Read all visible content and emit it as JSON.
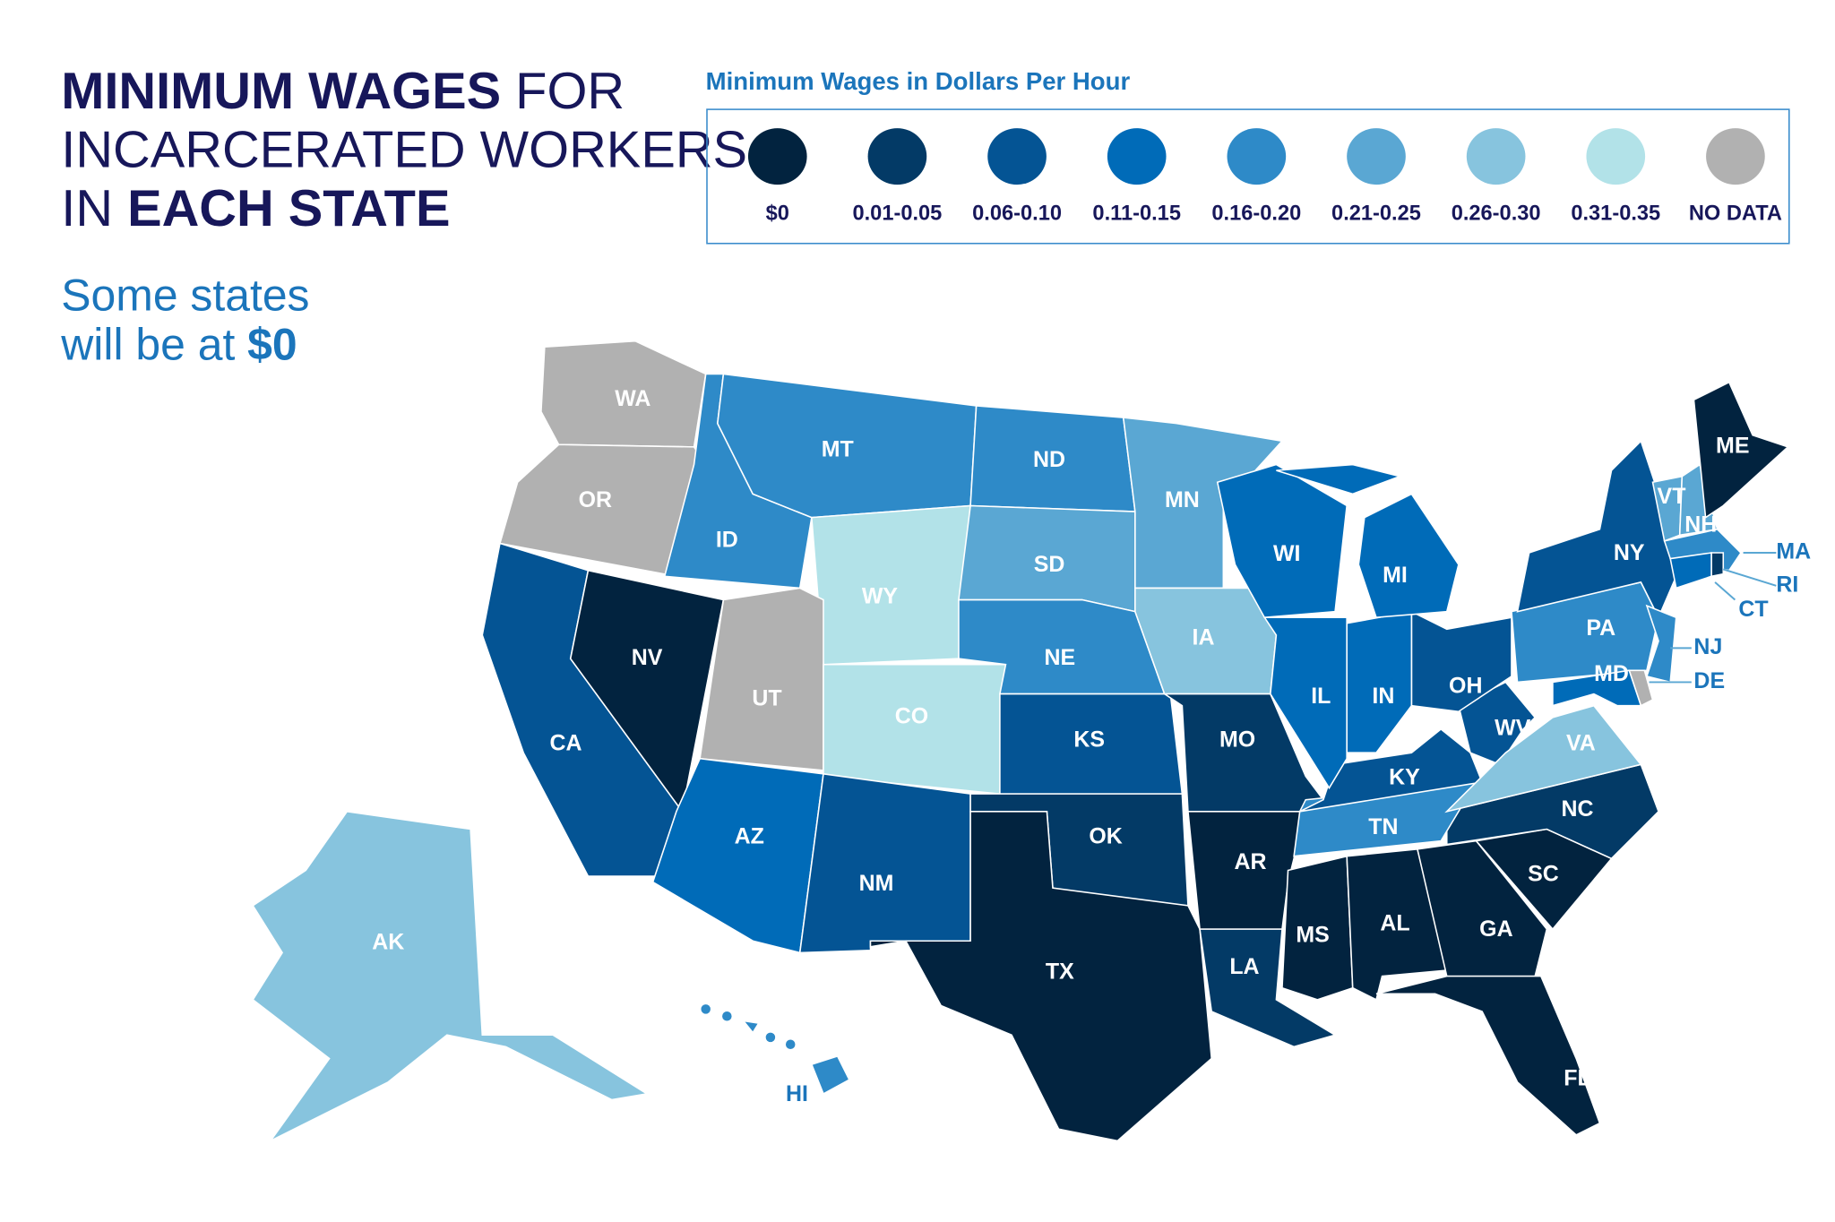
{
  "title": {
    "line1_bold": "MINIMUM WAGES",
    "line1_rest": " FOR",
    "line2": "INCARCERATED WORKERS",
    "line3_pre": "IN ",
    "line3_bold": "EACH STATE"
  },
  "subtitle": {
    "line1": "Some states",
    "line2_pre": "will be at ",
    "line2_bold": "$0"
  },
  "legend": {
    "title": "Minimum Wages in Dollars Per Hour",
    "bins": [
      {
        "key": "b0",
        "label": "$0",
        "color": "#02233f"
      },
      {
        "key": "b1",
        "label": "0.01-0.05",
        "color": "#033a66"
      },
      {
        "key": "b2",
        "label": "0.06-0.10",
        "color": "#045494"
      },
      {
        "key": "b3",
        "label": "0.11-0.15",
        "color": "#006bb8"
      },
      {
        "key": "b4",
        "label": "0.16-0.20",
        "color": "#2e8ac8"
      },
      {
        "key": "b5",
        "label": "0.21-0.25",
        "color": "#5aa7d3"
      },
      {
        "key": "b6",
        "label": "0.26-0.30",
        "color": "#87c4de"
      },
      {
        "key": "b7",
        "label": "0.31-0.35",
        "color": "#b2e2e8"
      },
      {
        "key": "nd",
        "label": "NO DATA",
        "color": "#b1b1b1"
      }
    ]
  },
  "states": [
    {
      "abbr": "WA",
      "bin": "nd"
    },
    {
      "abbr": "OR",
      "bin": "nd"
    },
    {
      "abbr": "CA",
      "bin": "b2"
    },
    {
      "abbr": "NV",
      "bin": "b0"
    },
    {
      "abbr": "ID",
      "bin": "b4"
    },
    {
      "abbr": "MT",
      "bin": "b4"
    },
    {
      "abbr": "WY",
      "bin": "b7"
    },
    {
      "abbr": "UT",
      "bin": "nd"
    },
    {
      "abbr": "CO",
      "bin": "b7"
    },
    {
      "abbr": "AZ",
      "bin": "b3"
    },
    {
      "abbr": "NM",
      "bin": "b2"
    },
    {
      "abbr": "ND",
      "bin": "b4"
    },
    {
      "abbr": "SD",
      "bin": "b5"
    },
    {
      "abbr": "NE",
      "bin": "b4"
    },
    {
      "abbr": "KS",
      "bin": "b2"
    },
    {
      "abbr": "OK",
      "bin": "b1"
    },
    {
      "abbr": "TX",
      "bin": "b0"
    },
    {
      "abbr": "MN",
      "bin": "b5"
    },
    {
      "abbr": "IA",
      "bin": "b6"
    },
    {
      "abbr": "MO",
      "bin": "b1"
    },
    {
      "abbr": "AR",
      "bin": "b0"
    },
    {
      "abbr": "LA",
      "bin": "b1"
    },
    {
      "abbr": "MS",
      "bin": "b0"
    },
    {
      "abbr": "AL",
      "bin": "b0"
    },
    {
      "abbr": "GA",
      "bin": "b0"
    },
    {
      "abbr": "FL",
      "bin": "b0"
    },
    {
      "abbr": "SC",
      "bin": "b0"
    },
    {
      "abbr": "NC",
      "bin": "b1"
    },
    {
      "abbr": "TN",
      "bin": "b4"
    },
    {
      "abbr": "KY",
      "bin": "b2"
    },
    {
      "abbr": "WV",
      "bin": "b2"
    },
    {
      "abbr": "VA",
      "bin": "b6"
    },
    {
      "abbr": "OH",
      "bin": "b2"
    },
    {
      "abbr": "IN",
      "bin": "b3"
    },
    {
      "abbr": "IL",
      "bin": "b3"
    },
    {
      "abbr": "WI",
      "bin": "b3"
    },
    {
      "abbr": "MI",
      "bin": "b3"
    },
    {
      "abbr": "PA",
      "bin": "b4"
    },
    {
      "abbr": "NY",
      "bin": "b2"
    },
    {
      "abbr": "NJ",
      "bin": "b4"
    },
    {
      "abbr": "DE",
      "bin": "nd"
    },
    {
      "abbr": "MD",
      "bin": "b3"
    },
    {
      "abbr": "VT",
      "bin": "b5"
    },
    {
      "abbr": "NH",
      "bin": "b5"
    },
    {
      "abbr": "MA",
      "bin": "b4"
    },
    {
      "abbr": "CT",
      "bin": "b3"
    },
    {
      "abbr": "RI",
      "bin": "b1"
    },
    {
      "abbr": "ME",
      "bin": "b0"
    },
    {
      "abbr": "AK",
      "bin": "b6"
    },
    {
      "abbr": "HI",
      "bin": "b4"
    }
  ]
}
